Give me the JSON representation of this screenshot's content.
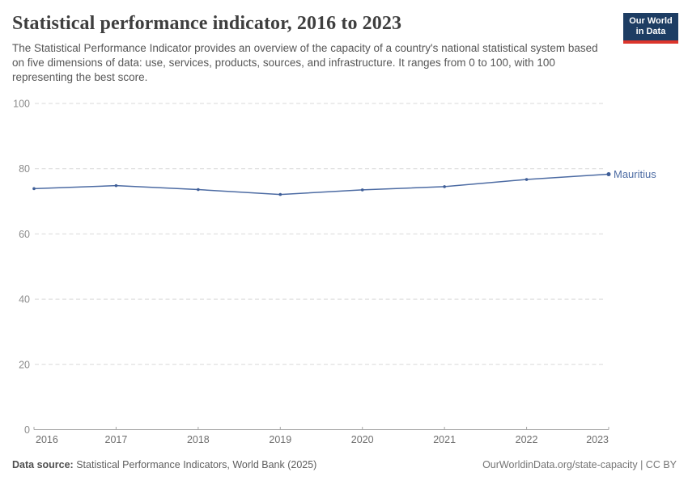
{
  "header": {
    "title": "Statistical performance indicator, 2016 to 2023",
    "subtitle": "The Statistical Performance Indicator provides an overview of the capacity of a country's national statistical system based on five dimensions of data: use, services, products, sources, and infrastructure. It ranges from 0 to 100, with 100 representing the best score."
  },
  "logo": {
    "line1": "Our World",
    "line2": "in Data",
    "bg_color": "#1d3d63",
    "stripe_color": "#dc352c"
  },
  "chart_data": {
    "type": "line",
    "title": "Statistical performance indicator, 2016 to 2023",
    "xlabel": "",
    "ylabel": "",
    "x": [
      2016,
      2017,
      2018,
      2019,
      2020,
      2021,
      2022,
      2023
    ],
    "series": [
      {
        "name": "Mauritius",
        "color": "#4c6ba3",
        "point_color": "#3f5e97",
        "values": [
          73.9,
          74.8,
          73.6,
          72.1,
          73.5,
          74.5,
          76.7,
          78.3
        ]
      }
    ],
    "ylim": [
      0,
      100
    ],
    "yticks": [
      0,
      20,
      40,
      60,
      80,
      100
    ],
    "grid": "horizontal-dashed",
    "legend": "end-of-line-label",
    "axis_color": "#a6a6a6",
    "grid_color": "#d9d9d9",
    "ytick_label_color": "#8c8c8c",
    "xtick_label_color": "#6e6e6e"
  },
  "footer": {
    "datasource_label": "Data source:",
    "datasource_value": "Statistical Performance Indicators, World Bank (2025)",
    "attribution": "OurWorldinData.org/state-capacity | CC BY"
  }
}
